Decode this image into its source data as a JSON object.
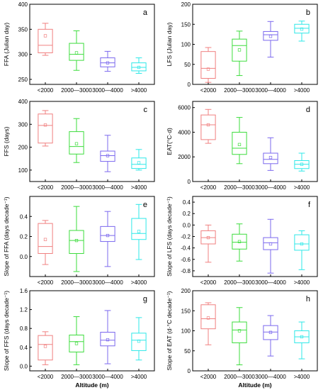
{
  "colors": [
    "#f08080",
    "#3ddc3d",
    "#7b68ee",
    "#2ee8e8"
  ],
  "chart_data": [
    {
      "panel": "a",
      "type": "box",
      "ylabel": "FFA (Julian day)",
      "xlabel": "",
      "ylim": [
        240,
        400
      ],
      "yticks": [
        250,
        300,
        350,
        400
      ],
      "categories": [
        "<2000",
        "2000—3000",
        "3000—4000",
        ">4000"
      ],
      "boxes": [
        {
          "min": 298,
          "q1": 303,
          "median": 318,
          "q3": 350,
          "max": 362,
          "mean": 337
        },
        {
          "min": 268,
          "q1": 288,
          "median": 300,
          "q3": 322,
          "max": 347,
          "mean": 303
        },
        {
          "min": 266,
          "q1": 275,
          "median": 283,
          "q3": 293,
          "max": 306,
          "mean": 283
        },
        {
          "min": 262,
          "q1": 267,
          "median": 274,
          "q3": 283,
          "max": 293,
          "mean": 274
        }
      ]
    },
    {
      "panel": "b",
      "type": "box",
      "ylabel": "LFS (Julian day)",
      "xlabel": "",
      "ylim": [
        0,
        200
      ],
      "yticks": [
        0,
        50,
        100,
        150,
        200
      ],
      "categories": [
        "<2000",
        "2000—3000",
        "3000—4000",
        ">4000"
      ],
      "boxes": [
        {
          "min": 5,
          "q1": 15,
          "median": 40,
          "q3": 82,
          "max": 92,
          "mean": 38
        },
        {
          "min": 22,
          "q1": 58,
          "median": 97,
          "q3": 113,
          "max": 133,
          "mean": 86
        },
        {
          "min": 68,
          "q1": 110,
          "median": 124,
          "q3": 132,
          "max": 157,
          "mean": 120
        },
        {
          "min": 108,
          "q1": 128,
          "median": 140,
          "q3": 150,
          "max": 158,
          "mean": 138
        }
      ]
    },
    {
      "panel": "c",
      "type": "box",
      "ylabel": "FFS (days)",
      "xlabel": "",
      "ylim": [
        50,
        400
      ],
      "yticks": [
        100,
        200,
        300,
        400
      ],
      "categories": [
        "<2000",
        "2000—3000",
        "3000—4000",
        ">4000"
      ],
      "boxes": [
        {
          "min": 205,
          "q1": 218,
          "median": 295,
          "q3": 345,
          "max": 360,
          "mean": 297
        },
        {
          "min": 133,
          "q1": 170,
          "median": 203,
          "q3": 268,
          "max": 325,
          "mean": 215
        },
        {
          "min": 93,
          "q1": 138,
          "median": 163,
          "q3": 183,
          "max": 252,
          "mean": 163
        },
        {
          "min": 100,
          "q1": 107,
          "median": 125,
          "q3": 153,
          "max": 190,
          "mean": 132
        }
      ]
    },
    {
      "panel": "d",
      "type": "box",
      "ylabel": "EAT(°C·d)",
      "xlabel": "",
      "ylim": [
        0,
        6500
      ],
      "yticks": [
        0,
        2000,
        4000,
        6000
      ],
      "categories": [
        "<2000",
        "2000—3000",
        "3000—4000",
        ">4000"
      ],
      "boxes": [
        {
          "min": 3100,
          "q1": 3400,
          "median": 4600,
          "q3": 5400,
          "max": 5850,
          "mean": 4600
        },
        {
          "min": 1450,
          "q1": 2200,
          "median": 2700,
          "q3": 4000,
          "max": 5200,
          "mean": 3000
        },
        {
          "min": 900,
          "q1": 1450,
          "median": 1800,
          "q3": 2300,
          "max": 3550,
          "mean": 1950
        },
        {
          "min": 850,
          "q1": 1050,
          "median": 1400,
          "q3": 1700,
          "max": 2300,
          "mean": 1400
        }
      ]
    },
    {
      "panel": "e",
      "type": "box",
      "ylabel": "Slope of FFA (days decade⁻¹)",
      "xlabel": "",
      "ylim": [
        -0.2,
        0.6
      ],
      "yticks": [
        0.0,
        0.2,
        0.4
      ],
      "categories": [
        "<2000",
        "2000—3000",
        "3000—4000",
        ">4000"
      ],
      "boxes": [
        {
          "min": -0.08,
          "q1": 0.03,
          "median": 0.1,
          "q3": 0.33,
          "max": 0.36,
          "mean": 0.17
        },
        {
          "min": -0.15,
          "q1": 0.03,
          "median": 0.16,
          "q3": 0.26,
          "max": 0.5,
          "mean": 0.16
        },
        {
          "min": -0.1,
          "q1": 0.15,
          "median": 0.21,
          "q3": 0.3,
          "max": 0.45,
          "mean": 0.21
        },
        {
          "min": -0.03,
          "q1": 0.17,
          "median": 0.23,
          "q3": 0.38,
          "max": 0.52,
          "mean": 0.25
        }
      ]
    },
    {
      "panel": "f",
      "type": "box",
      "ylabel": "Slope of LFS (days decade⁻¹)",
      "xlabel": "",
      "ylim": [
        -0.9,
        0.5
      ],
      "yticks": [
        -0.8,
        -0.6,
        -0.4,
        -0.2,
        0.0,
        0.2,
        0.4
      ],
      "categories": [
        "<2000",
        "2000—3000",
        "3000—4000",
        ">4000"
      ],
      "boxes": [
        {
          "min": -0.65,
          "q1": -0.33,
          "median": -0.22,
          "q3": -0.1,
          "max": 0.0,
          "mean": -0.22
        },
        {
          "min": -0.63,
          "q1": -0.42,
          "median": -0.3,
          "q3": -0.16,
          "max": 0.02,
          "mean": -0.29
        },
        {
          "min": -0.84,
          "q1": -0.43,
          "median": -0.31,
          "q3": -0.22,
          "max": 0.1,
          "mean": -0.33
        },
        {
          "min": -0.78,
          "q1": -0.44,
          "median": -0.33,
          "q3": -0.17,
          "max": -0.1,
          "mean": -0.33
        }
      ]
    },
    {
      "panel": "g",
      "type": "box",
      "ylabel": "Slope of FFS (days decade⁻¹)",
      "xlabel": "Altitude (m)",
      "ylim": [
        -0.1,
        1.6
      ],
      "yticks": [
        0.0,
        0.4,
        0.8,
        1.2,
        1.6
      ],
      "categories": [
        "<2000",
        "2000—3000",
        "3000—4000",
        ">4000"
      ],
      "boxes": [
        {
          "min": 0.03,
          "q1": 0.13,
          "median": 0.46,
          "q3": 0.65,
          "max": 0.73,
          "mean": 0.42
        },
        {
          "min": 0.03,
          "q1": 0.3,
          "median": 0.52,
          "q3": 0.66,
          "max": 1.05,
          "mean": 0.48
        },
        {
          "min": 0.05,
          "q1": 0.43,
          "median": 0.55,
          "q3": 0.72,
          "max": 1.18,
          "mean": 0.56
        },
        {
          "min": 0.13,
          "q1": 0.33,
          "median": 0.55,
          "q3": 0.7,
          "max": 1.03,
          "mean": 0.53
        }
      ]
    },
    {
      "panel": "h",
      "type": "box",
      "ylabel": "Slope of EAT (d·°C decade⁻¹)",
      "xlabel": "Altitude (m)",
      "ylim": [
        0,
        200
      ],
      "yticks": [
        0,
        50,
        100,
        150,
        200
      ],
      "categories": [
        "<2000",
        "2000—3000",
        "3000—4000",
        ">4000"
      ],
      "boxes": [
        {
          "min": 65,
          "q1": 105,
          "median": 130,
          "q3": 165,
          "max": 170,
          "mean": 132
        },
        {
          "min": 15,
          "q1": 70,
          "median": 102,
          "q3": 122,
          "max": 158,
          "mean": 100
        },
        {
          "min": 37,
          "q1": 78,
          "median": 97,
          "q3": 113,
          "max": 138,
          "mean": 96
        },
        {
          "min": 30,
          "q1": 70,
          "median": 85,
          "q3": 100,
          "max": 122,
          "mean": 85
        }
      ]
    }
  ]
}
